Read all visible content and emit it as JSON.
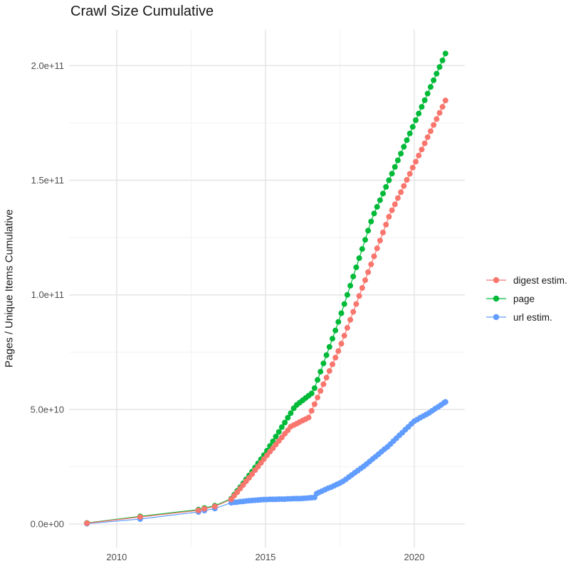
{
  "chart": {
    "title": "Crawl Size Cumulative",
    "ylabel": "Pages / Unique Items Cumulative"
  },
  "chart_data": {
    "type": "scatter",
    "title": "Crawl Size Cumulative",
    "xlabel": "",
    "ylabel": "Pages / Unique Items Cumulative",
    "y_unit": "values stored in billions (1e9) of pages / unique items",
    "xlim": [
      2008.4,
      2021.7
    ],
    "ylim_e9": [
      -10.2,
      215.6
    ],
    "grid": {
      "major_color": "#e5e5e5",
      "minor_color": "#f2f2f2",
      "show": true
    },
    "legend_position": "right",
    "x_axis": {
      "major_ticks": [
        {
          "value": 2010,
          "label": "2010"
        },
        {
          "value": 2015,
          "label": "2015"
        },
        {
          "value": 2020,
          "label": "2020"
        }
      ],
      "minor_ticks": [
        2012.5,
        2017.5
      ]
    },
    "y_axis": {
      "major_ticks": [
        {
          "value_e9": 0,
          "label": "0.0e+00"
        },
        {
          "value_e9": 50,
          "label": "5.0e+10"
        },
        {
          "value_e9": 100,
          "label": "1.0e+11"
        },
        {
          "value_e9": 150,
          "label": "1.5e+11"
        },
        {
          "value_e9": 200,
          "label": "2.0e+11"
        }
      ],
      "minor_ticks_e9": [
        25,
        75,
        125,
        175
      ]
    },
    "series": [
      {
        "name": "digest estim.",
        "color": "#F8766D",
        "points": [
          [
            2009.0,
            0.4
          ],
          [
            2010.79,
            3.1
          ],
          [
            2012.75,
            6.0
          ],
          [
            2012.95,
            6.7
          ],
          [
            2013.3,
            7.7
          ],
          [
            2013.85,
            10.8
          ],
          [
            2013.95,
            12.4
          ],
          [
            2014.05,
            13.9
          ],
          [
            2014.15,
            15.5
          ],
          [
            2014.25,
            17.1
          ],
          [
            2014.35,
            18.7
          ],
          [
            2014.45,
            20.2
          ],
          [
            2014.55,
            21.8
          ],
          [
            2014.65,
            23.5
          ],
          [
            2014.75,
            25.1
          ],
          [
            2014.85,
            26.7
          ],
          [
            2014.95,
            28.4
          ],
          [
            2015.05,
            30.0
          ],
          [
            2015.15,
            31.6
          ],
          [
            2015.25,
            33.1
          ],
          [
            2015.35,
            34.7
          ],
          [
            2015.45,
            36.3
          ],
          [
            2015.55,
            37.8
          ],
          [
            2015.65,
            39.4
          ],
          [
            2015.75,
            40.9
          ],
          [
            2015.85,
            42.5
          ],
          [
            2015.95,
            43.2
          ],
          [
            2016.05,
            43.8
          ],
          [
            2016.15,
            44.5
          ],
          [
            2016.25,
            45.2
          ],
          [
            2016.35,
            45.8
          ],
          [
            2016.45,
            46.5
          ],
          [
            2016.55,
            49.4
          ],
          [
            2016.65,
            52.3
          ],
          [
            2016.75,
            55.2
          ],
          [
            2016.85,
            58.1
          ],
          [
            2016.95,
            61.0
          ],
          [
            2017.05,
            63.9
          ],
          [
            2017.15,
            66.8
          ],
          [
            2017.25,
            69.7
          ],
          [
            2017.35,
            72.6
          ],
          [
            2017.45,
            75.5
          ],
          [
            2017.55,
            78.7
          ],
          [
            2017.65,
            82.2
          ],
          [
            2017.75,
            85.6
          ],
          [
            2017.85,
            89.1
          ],
          [
            2017.95,
            92.6
          ],
          [
            2018.05,
            96.0
          ],
          [
            2018.15,
            99.5
          ],
          [
            2018.25,
            103.0
          ],
          [
            2018.35,
            106.4
          ],
          [
            2018.45,
            109.9
          ],
          [
            2018.55,
            113.3
          ],
          [
            2018.65,
            116.8
          ],
          [
            2018.75,
            120.3
          ],
          [
            2018.85,
            123.7
          ],
          [
            2018.95,
            127.2
          ],
          [
            2019.05,
            130.6
          ],
          [
            2019.15,
            134.1
          ],
          [
            2019.25,
            136.9
          ],
          [
            2019.35,
            139.5
          ],
          [
            2019.45,
            142.2
          ],
          [
            2019.55,
            144.8
          ],
          [
            2019.65,
            147.5
          ],
          [
            2019.75,
            150.2
          ],
          [
            2019.85,
            152.8
          ],
          [
            2019.95,
            155.5
          ],
          [
            2020.05,
            158.1
          ],
          [
            2020.15,
            160.8
          ],
          [
            2020.25,
            163.4
          ],
          [
            2020.35,
            166.1
          ],
          [
            2020.45,
            168.8
          ],
          [
            2020.55,
            171.4
          ],
          [
            2020.65,
            174.1
          ],
          [
            2020.75,
            176.7
          ],
          [
            2020.85,
            179.4
          ],
          [
            2020.95,
            182.0
          ],
          [
            2021.05,
            184.8
          ]
        ]
      },
      {
        "name": "page",
        "color": "#00BA38",
        "points": [
          [
            2009.0,
            0.5
          ],
          [
            2010.79,
            3.4
          ],
          [
            2012.75,
            6.3
          ],
          [
            2012.95,
            7.0
          ],
          [
            2013.3,
            8.0
          ],
          [
            2013.85,
            11.1
          ],
          [
            2013.95,
            12.8
          ],
          [
            2014.05,
            14.5
          ],
          [
            2014.15,
            16.1
          ],
          [
            2014.25,
            17.8
          ],
          [
            2014.35,
            19.5
          ],
          [
            2014.45,
            21.2
          ],
          [
            2014.55,
            22.9
          ],
          [
            2014.65,
            24.7
          ],
          [
            2014.75,
            26.5
          ],
          [
            2014.85,
            28.3
          ],
          [
            2014.95,
            30.1
          ],
          [
            2015.05,
            32.0
          ],
          [
            2015.15,
            34.1
          ],
          [
            2015.25,
            36.1
          ],
          [
            2015.35,
            38.2
          ],
          [
            2015.45,
            40.2
          ],
          [
            2015.55,
            42.3
          ],
          [
            2015.65,
            44.3
          ],
          [
            2015.75,
            46.4
          ],
          [
            2015.85,
            48.4
          ],
          [
            2015.95,
            50.5
          ],
          [
            2016.05,
            52.0
          ],
          [
            2016.15,
            53.0
          ],
          [
            2016.25,
            54.0
          ],
          [
            2016.35,
            55.0
          ],
          [
            2016.45,
            56.0
          ],
          [
            2016.55,
            57.0
          ],
          [
            2016.65,
            59.3
          ],
          [
            2016.75,
            62.9
          ],
          [
            2016.85,
            66.5
          ],
          [
            2016.95,
            70.1
          ],
          [
            2017.05,
            73.7
          ],
          [
            2017.15,
            77.3
          ],
          [
            2017.25,
            80.9
          ],
          [
            2017.35,
            84.5
          ],
          [
            2017.45,
            88.2
          ],
          [
            2017.55,
            92.0
          ],
          [
            2017.65,
            96.0
          ],
          [
            2017.75,
            100.0
          ],
          [
            2017.85,
            104.0
          ],
          [
            2017.95,
            108.0
          ],
          [
            2018.05,
            112.0
          ],
          [
            2018.15,
            116.0
          ],
          [
            2018.25,
            120.0
          ],
          [
            2018.35,
            124.0
          ],
          [
            2018.45,
            128.0
          ],
          [
            2018.55,
            132.0
          ],
          [
            2018.65,
            135.5
          ],
          [
            2018.75,
            138.4
          ],
          [
            2018.85,
            141.3
          ],
          [
            2018.95,
            144.2
          ],
          [
            2019.05,
            147.1
          ],
          [
            2019.15,
            150.0
          ],
          [
            2019.25,
            152.9
          ],
          [
            2019.35,
            155.8
          ],
          [
            2019.45,
            158.7
          ],
          [
            2019.55,
            161.6
          ],
          [
            2019.65,
            164.6
          ],
          [
            2019.75,
            167.5
          ],
          [
            2019.85,
            170.4
          ],
          [
            2019.95,
            173.3
          ],
          [
            2020.05,
            176.2
          ],
          [
            2020.15,
            179.1
          ],
          [
            2020.25,
            182.0
          ],
          [
            2020.35,
            184.9
          ],
          [
            2020.45,
            187.8
          ],
          [
            2020.55,
            190.7
          ],
          [
            2020.65,
            193.6
          ],
          [
            2020.75,
            196.5
          ],
          [
            2020.85,
            199.4
          ],
          [
            2020.95,
            202.3
          ],
          [
            2021.05,
            205.3
          ]
        ]
      },
      {
        "name": "url estim.",
        "color": "#619CFF",
        "points": [
          [
            2009.0,
            0.2
          ],
          [
            2010.79,
            2.2
          ],
          [
            2012.75,
            5.3
          ],
          [
            2012.95,
            5.9
          ],
          [
            2013.3,
            6.8
          ],
          [
            2013.85,
            9.3
          ],
          [
            2013.95,
            9.5
          ],
          [
            2014.05,
            9.6
          ],
          [
            2014.15,
            9.8
          ],
          [
            2014.25,
            9.9
          ],
          [
            2014.35,
            10.1
          ],
          [
            2014.45,
            10.2
          ],
          [
            2014.55,
            10.3
          ],
          [
            2014.65,
            10.4
          ],
          [
            2014.75,
            10.5
          ],
          [
            2014.85,
            10.6
          ],
          [
            2014.95,
            10.7
          ],
          [
            2015.05,
            10.7
          ],
          [
            2015.15,
            10.8
          ],
          [
            2015.25,
            10.8
          ],
          [
            2015.35,
            10.8
          ],
          [
            2015.45,
            10.9
          ],
          [
            2015.55,
            10.9
          ],
          [
            2015.65,
            10.9
          ],
          [
            2015.75,
            11.0
          ],
          [
            2015.85,
            11.0
          ],
          [
            2015.95,
            11.1
          ],
          [
            2016.05,
            11.1
          ],
          [
            2016.15,
            11.1
          ],
          [
            2016.25,
            11.2
          ],
          [
            2016.35,
            11.3
          ],
          [
            2016.45,
            11.4
          ],
          [
            2016.55,
            11.5
          ],
          [
            2016.65,
            11.6
          ],
          [
            2016.72,
            13.3
          ],
          [
            2016.8,
            13.8
          ],
          [
            2016.9,
            14.4
          ],
          [
            2017.0,
            15.0
          ],
          [
            2017.1,
            15.6
          ],
          [
            2017.2,
            16.1
          ],
          [
            2017.3,
            16.7
          ],
          [
            2017.4,
            17.3
          ],
          [
            2017.5,
            17.9
          ],
          [
            2017.6,
            18.6
          ],
          [
            2017.7,
            19.5
          ],
          [
            2017.8,
            20.5
          ],
          [
            2017.9,
            21.4
          ],
          [
            2018.0,
            22.4
          ],
          [
            2018.1,
            23.3
          ],
          [
            2018.2,
            24.3
          ],
          [
            2018.3,
            25.2
          ],
          [
            2018.4,
            26.2
          ],
          [
            2018.5,
            27.3
          ],
          [
            2018.6,
            28.4
          ],
          [
            2018.7,
            29.4
          ],
          [
            2018.8,
            30.5
          ],
          [
            2018.9,
            31.6
          ],
          [
            2019.0,
            32.7
          ],
          [
            2019.1,
            33.7
          ],
          [
            2019.2,
            34.9
          ],
          [
            2019.3,
            36.2
          ],
          [
            2019.4,
            37.4
          ],
          [
            2019.5,
            38.7
          ],
          [
            2019.6,
            39.9
          ],
          [
            2019.7,
            41.2
          ],
          [
            2019.8,
            42.4
          ],
          [
            2019.9,
            43.7
          ],
          [
            2020.0,
            44.9
          ],
          [
            2020.1,
            45.6
          ],
          [
            2020.2,
            46.4
          ],
          [
            2020.3,
            47.1
          ],
          [
            2020.4,
            47.8
          ],
          [
            2020.5,
            48.5
          ],
          [
            2020.6,
            49.4
          ],
          [
            2020.7,
            50.3
          ],
          [
            2020.8,
            51.1
          ],
          [
            2020.9,
            52.0
          ],
          [
            2021.0,
            52.9
          ],
          [
            2021.05,
            53.3
          ]
        ]
      }
    ]
  }
}
